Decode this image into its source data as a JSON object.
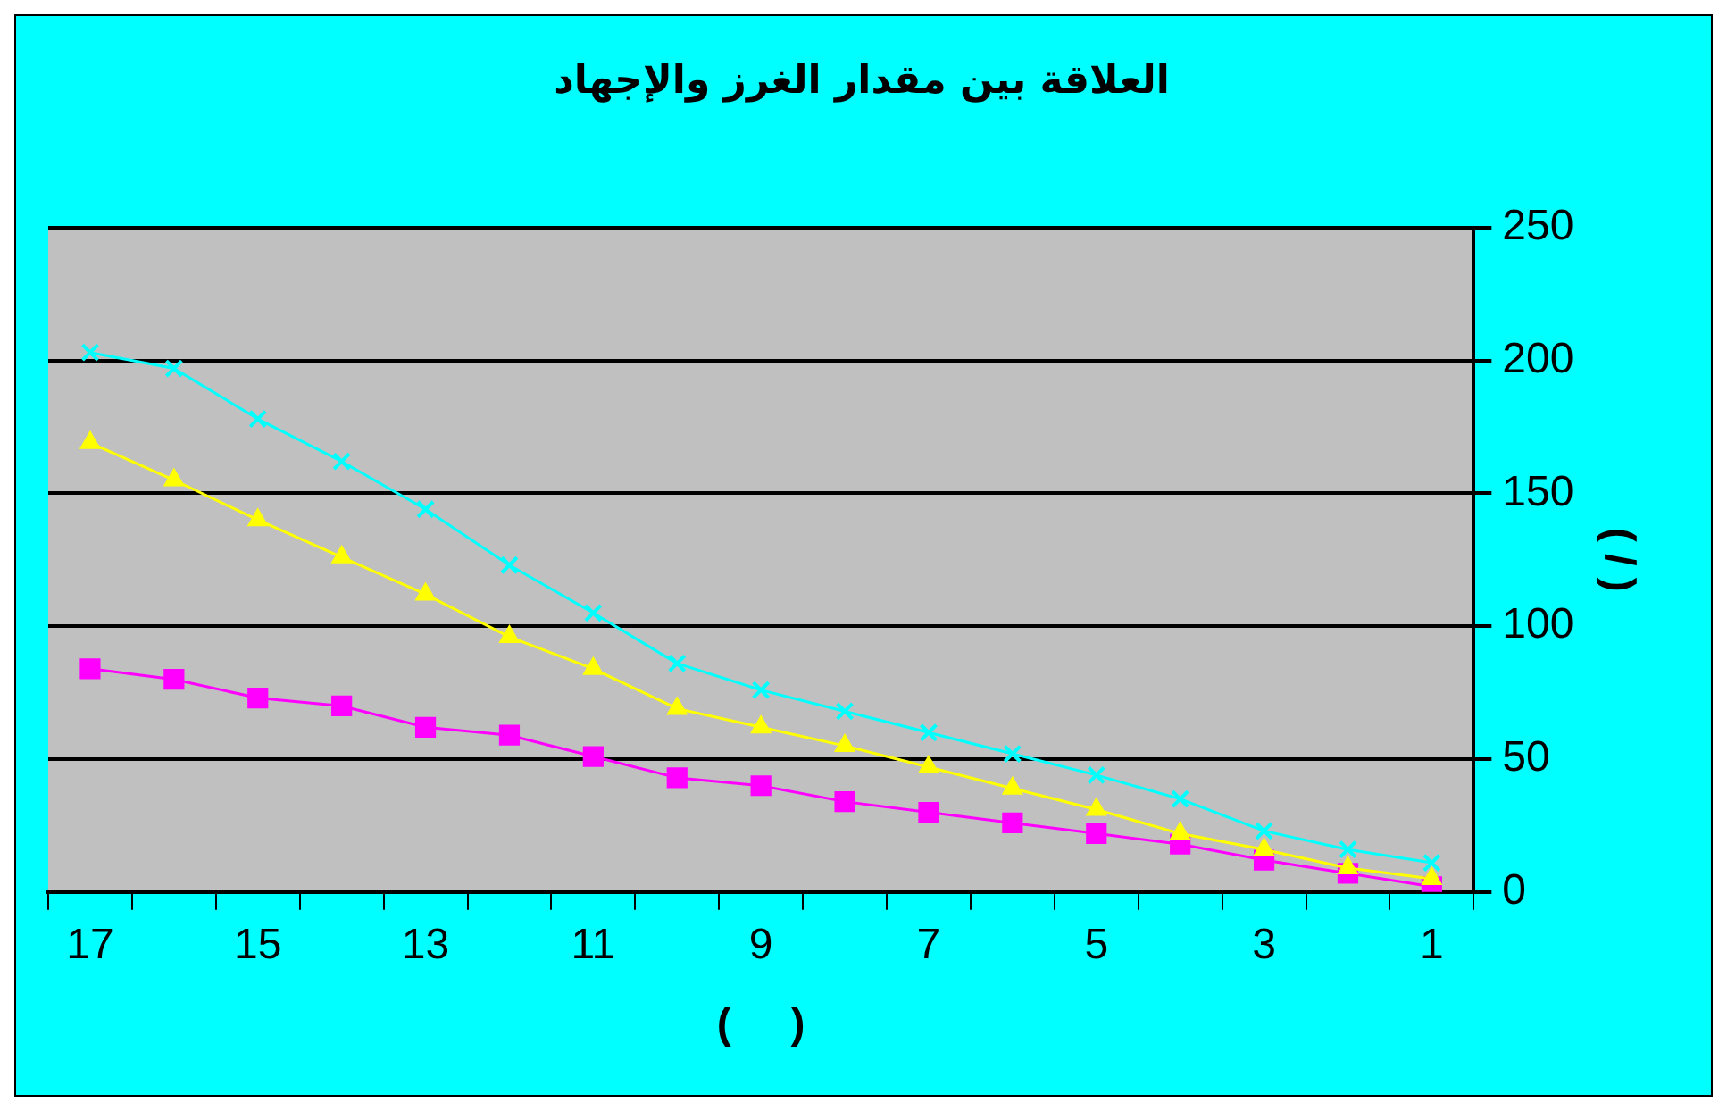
{
  "chart_data": {
    "type": "line",
    "title": "العلاقة بين مقدار الغرز والإجهاد",
    "xlabel": "(     )",
    "ylabel": "( / )",
    "categories": [
      "17",
      null,
      "15",
      null,
      "13",
      null,
      "11",
      null,
      "9",
      null,
      "7",
      null,
      "5",
      null,
      "3",
      null,
      "1"
    ],
    "series": [
      {
        "color": "#00ffff",
        "marker": "cross",
        "values": [
          203,
          197,
          178,
          162,
          144,
          123,
          105,
          86,
          76,
          68,
          60,
          52,
          44,
          35,
          23,
          16,
          11
        ]
      },
      {
        "color": "#ffff00",
        "marker": "triangle",
        "values": [
          169,
          155,
          140,
          126,
          112,
          96,
          84,
          69,
          62,
          55,
          47,
          39,
          31,
          22,
          16,
          9,
          5
        ]
      },
      {
        "color": "#ff00ff",
        "marker": "square",
        "values": [
          84,
          80,
          73,
          70,
          62,
          59,
          51,
          43,
          40,
          34,
          30,
          26,
          22,
          18,
          12,
          7,
          2
        ]
      }
    ],
    "ylim": [
      0,
      250
    ],
    "yticks": [
      0,
      50,
      100,
      150,
      200,
      250
    ],
    "grid": "y",
    "legend": false
  }
}
